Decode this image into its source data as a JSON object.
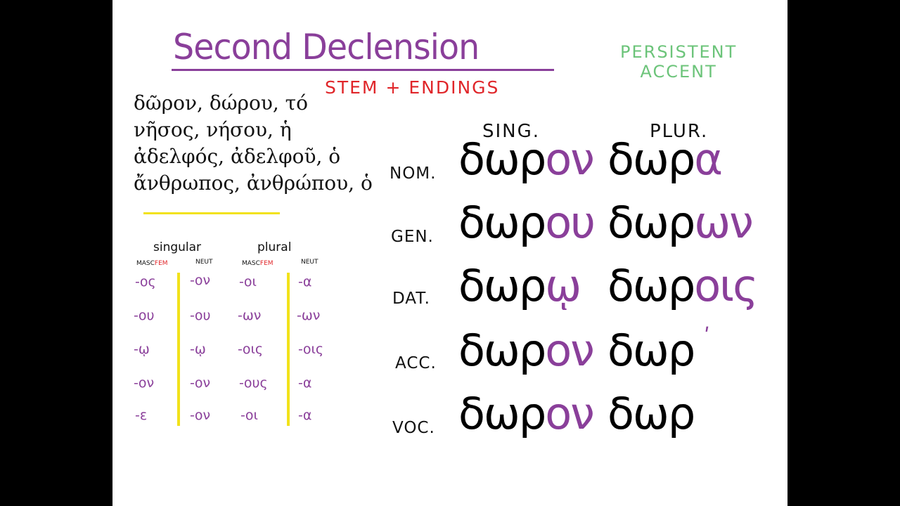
{
  "title": "Second Declension",
  "subtitle": "STEM + ENDINGS",
  "note": [
    "PERSISTENT",
    "ACCENT"
  ],
  "examples": [
    "δῶρον, δώρου, τό",
    "νῆσος, νήσου, ἡ",
    "ἀδελφός, ἀδελφοῦ, ὁ",
    "ἄνθρωπος, ἀνθρώπου, ὁ"
  ],
  "small_table": {
    "singular": "singular",
    "plural": "plural",
    "sub": {
      "masc": "MASC",
      "fem": "FEM",
      "neut": "NEUT"
    },
    "rows": [
      [
        "-ος",
        "-ον",
        "-οι",
        "-α"
      ],
      [
        "-ου",
        "-ου",
        "-ων",
        "-ων"
      ],
      [
        "-ῳ",
        "-ῳ",
        "-οις",
        "-οις"
      ],
      [
        "-ον",
        "-ον",
        "-ους",
        "-α"
      ],
      [
        "-ε",
        "-ον",
        "-οι",
        "-α"
      ]
    ]
  },
  "main_table": {
    "sing": "SING.",
    "plur": "PLUR.",
    "stem": "δωρ",
    "cases": [
      {
        "label": "NOM.",
        "sing_end": "ον",
        "plur_end": "α"
      },
      {
        "label": "GEN.",
        "sing_end": "ου",
        "plur_end": "ων"
      },
      {
        "label": "DAT.",
        "sing_end": "ῳ",
        "plur_end": "οις"
      },
      {
        "label": "ACC.",
        "sing_end": "ον",
        "plur_end": "ʹ"
      },
      {
        "label": "VOC.",
        "sing_end": "ον",
        "plur_end": ""
      }
    ]
  },
  "colors": {
    "purple": "#8a3f9a",
    "red": "#e0262a",
    "green": "#6cc47a",
    "yellow": "#f2e21a"
  }
}
